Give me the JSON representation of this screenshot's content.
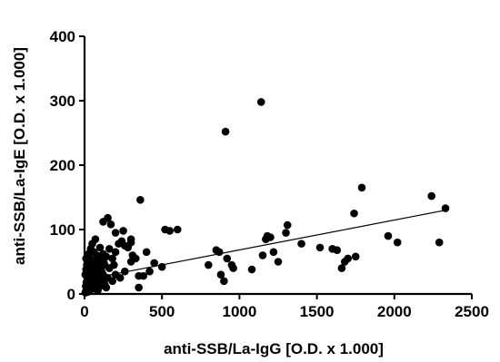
{
  "chart_data": {
    "type": "scatter",
    "title": "",
    "xlabel": "anti-SSB/La-IgG [O.D. x 1.000]",
    "ylabel": "anti-SSB/La-IgE [O.D. x 1.000]",
    "xlim": [
      0,
      2500
    ],
    "ylim": [
      0,
      400
    ],
    "xticks": [
      0,
      500,
      1000,
      1500,
      2000,
      2500
    ],
    "yticks": [
      0,
      100,
      200,
      300,
      400
    ],
    "xtick_labels": [
      "0",
      "500",
      "1000",
      "1500",
      "2000",
      "2500"
    ],
    "ytick_labels": [
      "0",
      "100",
      "200",
      "300",
      "400"
    ],
    "grid": false,
    "legend": "none",
    "marker_color": "#000000",
    "points": [
      [
        5,
        2
      ],
      [
        10,
        5
      ],
      [
        15,
        8
      ],
      [
        20,
        3
      ],
      [
        8,
        12
      ],
      [
        25,
        10
      ],
      [
        30,
        15
      ],
      [
        35,
        6
      ],
      [
        40,
        20
      ],
      [
        12,
        18
      ],
      [
        18,
        25
      ],
      [
        22,
        30
      ],
      [
        28,
        22
      ],
      [
        45,
        12
      ],
      [
        50,
        8
      ],
      [
        55,
        18
      ],
      [
        60,
        25
      ],
      [
        65,
        10
      ],
      [
        70,
        30
      ],
      [
        75,
        15
      ],
      [
        80,
        20
      ],
      [
        85,
        5
      ],
      [
        90,
        28
      ],
      [
        95,
        35
      ],
      [
        100,
        12
      ],
      [
        110,
        18
      ],
      [
        120,
        22
      ],
      [
        130,
        15
      ],
      [
        140,
        10
      ],
      [
        150,
        25
      ],
      [
        5,
        30
      ],
      [
        10,
        38
      ],
      [
        15,
        45
      ],
      [
        20,
        35
      ],
      [
        25,
        48
      ],
      [
        30,
        40
      ],
      [
        40,
        42
      ],
      [
        50,
        38
      ],
      [
        60,
        52
      ],
      [
        70,
        45
      ],
      [
        80,
        55
      ],
      [
        90,
        48
      ],
      [
        100,
        40
      ],
      [
        110,
        35
      ],
      [
        120,
        30
      ],
      [
        130,
        45
      ],
      [
        40,
        70
      ],
      [
        60,
        65
      ],
      [
        80,
        60
      ],
      [
        100,
        72
      ],
      [
        120,
        62
      ],
      [
        140,
        58
      ],
      [
        160,
        70
      ],
      [
        180,
        55
      ],
      [
        200,
        65
      ],
      [
        220,
        78
      ],
      [
        240,
        82
      ],
      [
        260,
        75
      ],
      [
        280,
        72
      ],
      [
        300,
        80
      ],
      [
        120,
        112
      ],
      [
        150,
        118
      ],
      [
        170,
        108
      ],
      [
        200,
        95
      ],
      [
        250,
        98
      ],
      [
        300,
        85
      ],
      [
        360,
        146
      ],
      [
        400,
        65
      ],
      [
        450,
        48
      ],
      [
        500,
        42
      ],
      [
        520,
        100
      ],
      [
        550,
        98
      ],
      [
        600,
        100
      ],
      [
        350,
        28
      ],
      [
        380,
        28
      ],
      [
        420,
        35
      ],
      [
        350,
        10
      ],
      [
        200,
        30
      ],
      [
        230,
        25
      ],
      [
        260,
        35
      ],
      [
        180,
        20
      ],
      [
        160,
        40
      ],
      [
        190,
        45
      ],
      [
        300,
        50
      ],
      [
        310,
        60
      ],
      [
        330,
        55
      ],
      [
        800,
        45
      ],
      [
        850,
        68
      ],
      [
        870,
        65
      ],
      [
        880,
        30
      ],
      [
        900,
        20
      ],
      [
        910,
        252
      ],
      [
        920,
        55
      ],
      [
        950,
        45
      ],
      [
        960,
        40
      ],
      [
        1080,
        38
      ],
      [
        1140,
        298
      ],
      [
        1150,
        60
      ],
      [
        1170,
        85
      ],
      [
        1180,
        90
      ],
      [
        1200,
        88
      ],
      [
        1220,
        65
      ],
      [
        1250,
        50
      ],
      [
        1300,
        95
      ],
      [
        1310,
        107
      ],
      [
        1400,
        78
      ],
      [
        1520,
        72
      ],
      [
        1600,
        70
      ],
      [
        1630,
        68
      ],
      [
        1660,
        40
      ],
      [
        1680,
        50
      ],
      [
        1700,
        55
      ],
      [
        1740,
        125
      ],
      [
        1750,
        58
      ],
      [
        1790,
        165
      ],
      [
        1960,
        90
      ],
      [
        2020,
        80
      ],
      [
        2240,
        152
      ],
      [
        2290,
        80
      ],
      [
        2330,
        133
      ],
      [
        30,
        60
      ],
      [
        50,
        78
      ],
      [
        70,
        85
      ],
      [
        10,
        55
      ],
      [
        25,
        62
      ],
      [
        45,
        30
      ],
      [
        65,
        42
      ],
      [
        85,
        35
      ],
      [
        105,
        52
      ],
      [
        125,
        48
      ]
    ],
    "fit_line": {
      "x": [
        0,
        2330
      ],
      "y": [
        22,
        130
      ]
    }
  }
}
